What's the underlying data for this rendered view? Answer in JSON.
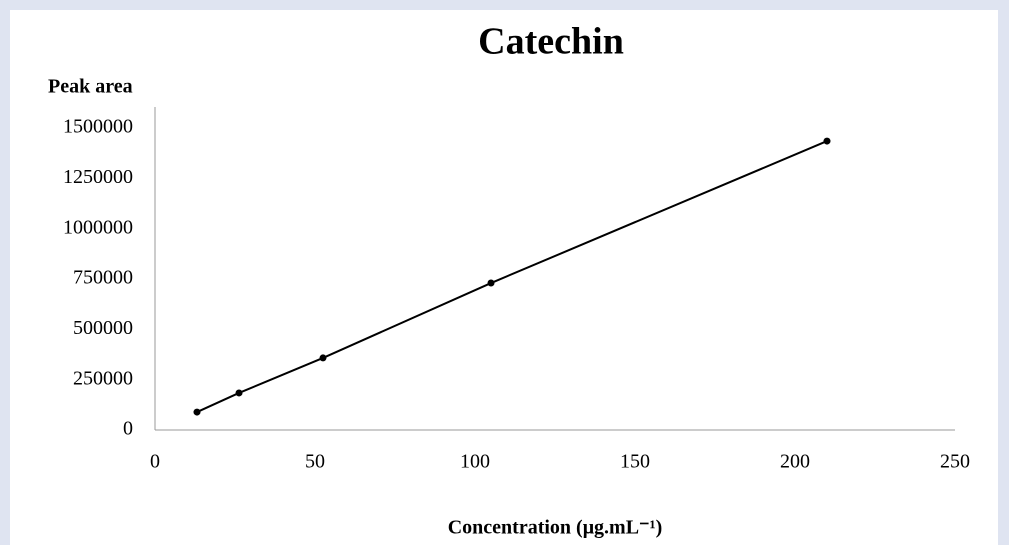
{
  "chart_data": {
    "type": "line",
    "title": "Catechin",
    "y_label": "Peak area",
    "x_label": "Concentration (μg.mL⁻¹)",
    "x": [
      13.125,
      26.25,
      52.5,
      105,
      210
    ],
    "values": [
      89000,
      184000,
      358000,
      730000,
      1435000
    ],
    "color": "#000000",
    "xlim": [
      0,
      250
    ],
    "xticks": [
      0,
      50,
      100,
      150,
      200,
      250
    ],
    "ylim": [
      0,
      1500000
    ],
    "yticks": [
      0,
      250000,
      500000,
      750000,
      1000000,
      1250000,
      1500000
    ],
    "grid": false
  }
}
